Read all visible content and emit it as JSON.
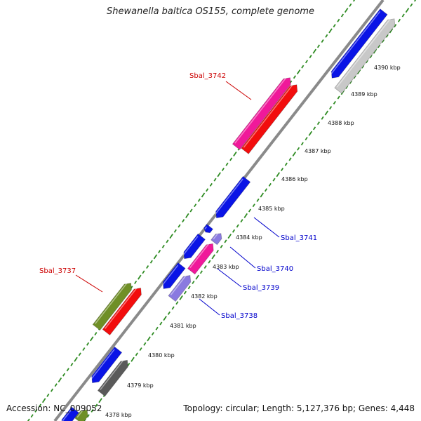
{
  "title": "Shewanella baltica OS155, complete genome",
  "footer": {
    "accession": "Accession: NC_009052",
    "stats": "Topology: circular; Length: 5,127,376 bp; Genes: 4,448"
  },
  "colors": {
    "backbone": "#8a8a8a",
    "tick": "#2e8b22",
    "label_forward": "#cc0000",
    "label_reverse": "#0000cc",
    "blue": "#0a14e6",
    "red": "#f20d0d",
    "pink": "#f0199a",
    "olive": "#6f8f26",
    "lavender": "#8a7ae0",
    "silver": "#c8c8c8",
    "darkgray": "#5a5a5a"
  },
  "ticks": [
    {
      "text": "4378 kbp"
    },
    {
      "text": "4379 kbp"
    },
    {
      "text": "4380 kbp"
    },
    {
      "text": "4381 kbp"
    },
    {
      "text": "4382 kbp"
    },
    {
      "text": "4383 kbp"
    },
    {
      "text": "4384 kbp"
    },
    {
      "text": "4385 kbp"
    },
    {
      "text": "4386 kbp"
    },
    {
      "text": "4387 kbp"
    },
    {
      "text": "4388 kbp"
    },
    {
      "text": "4389 kbp"
    },
    {
      "text": "4390 kbp"
    }
  ],
  "gene_labels": [
    {
      "text": "Sbal_3742",
      "strand": "forward"
    },
    {
      "text": "Sbal_3737",
      "strand": "forward"
    },
    {
      "text": "Sbal_3741",
      "strand": "reverse"
    },
    {
      "text": "Sbal_3740",
      "strand": "reverse"
    },
    {
      "text": "Sbal_3739",
      "strand": "reverse"
    },
    {
      "text": "Sbal_3738",
      "strand": "reverse"
    }
  ]
}
